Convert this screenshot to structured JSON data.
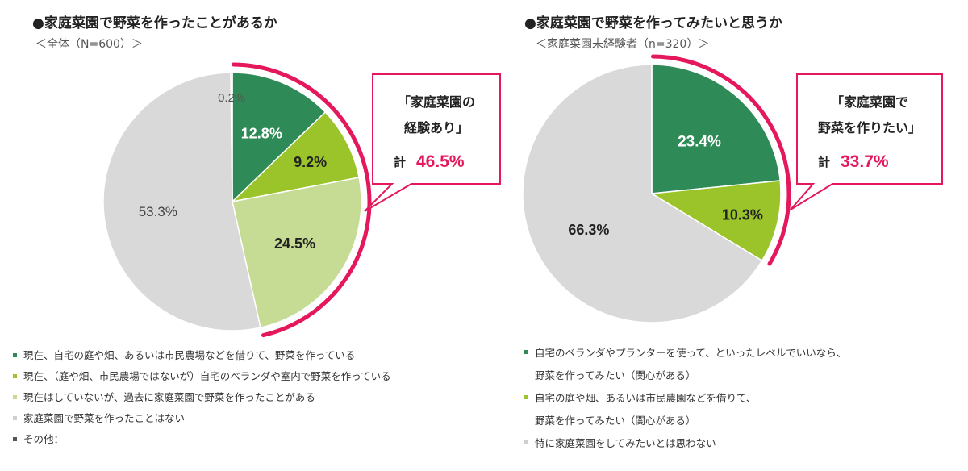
{
  "chart_data": [
    {
      "type": "pie",
      "title": "●家庭菜園で野菜を作ったことがあるか",
      "subtitle": "＜全体（N=600）＞",
      "labels": [
        "現在、自宅の庭や畑、あるいは市民農場などを借りて、野菜を作っている",
        "現在、（庭や畑、市民農場ではないが）自宅のベランダや室内で野菜を作っている",
        "現在はしていないが、過去に家庭菜園で野菜を作ったことがある",
        "家庭菜園で野菜を作ったことはない",
        "その他："
      ],
      "values": [
        12.8,
        9.2,
        24.5,
        53.3,
        0.2
      ],
      "value_labels": [
        "12.8%",
        "9.2%",
        "24.5%",
        "53.3%",
        "0.2%"
      ],
      "colors": [
        "#2e8b57",
        "#9ac42a",
        "#c6db94",
        "#d9d9d9",
        "#c0c0c0"
      ],
      "callout": {
        "line1": "「家庭菜園の",
        "line2": "経験あり」",
        "total_label": "計",
        "total_value": "46.5%"
      }
    },
    {
      "type": "pie",
      "title": "●家庭菜園で野菜を作ってみたいと思うか",
      "subtitle": "＜家庭菜園未経験者（n=320）＞",
      "labels": [
        "自宅のベランダやプランターを使って、といったレベルでいいなら、\n野菜を作ってみたい（関心がある）",
        "自宅の庭や畑、あるいは市民農園などを借りて、\n野菜を作ってみたい（関心がある）",
        "特に家庭菜園をしてみたいとは思わない"
      ],
      "values": [
        23.4,
        10.3,
        66.3
      ],
      "value_labels": [
        "23.4%",
        "10.3%",
        "66.3%"
      ],
      "colors": [
        "#2e8b57",
        "#9ac42a",
        "#d9d9d9"
      ],
      "callout": {
        "line1": "「家庭菜園で",
        "line2": "野菜を作りたい」",
        "total_label": "計",
        "total_value": "33.7%"
      }
    }
  ],
  "accent_color": "#e4185a"
}
